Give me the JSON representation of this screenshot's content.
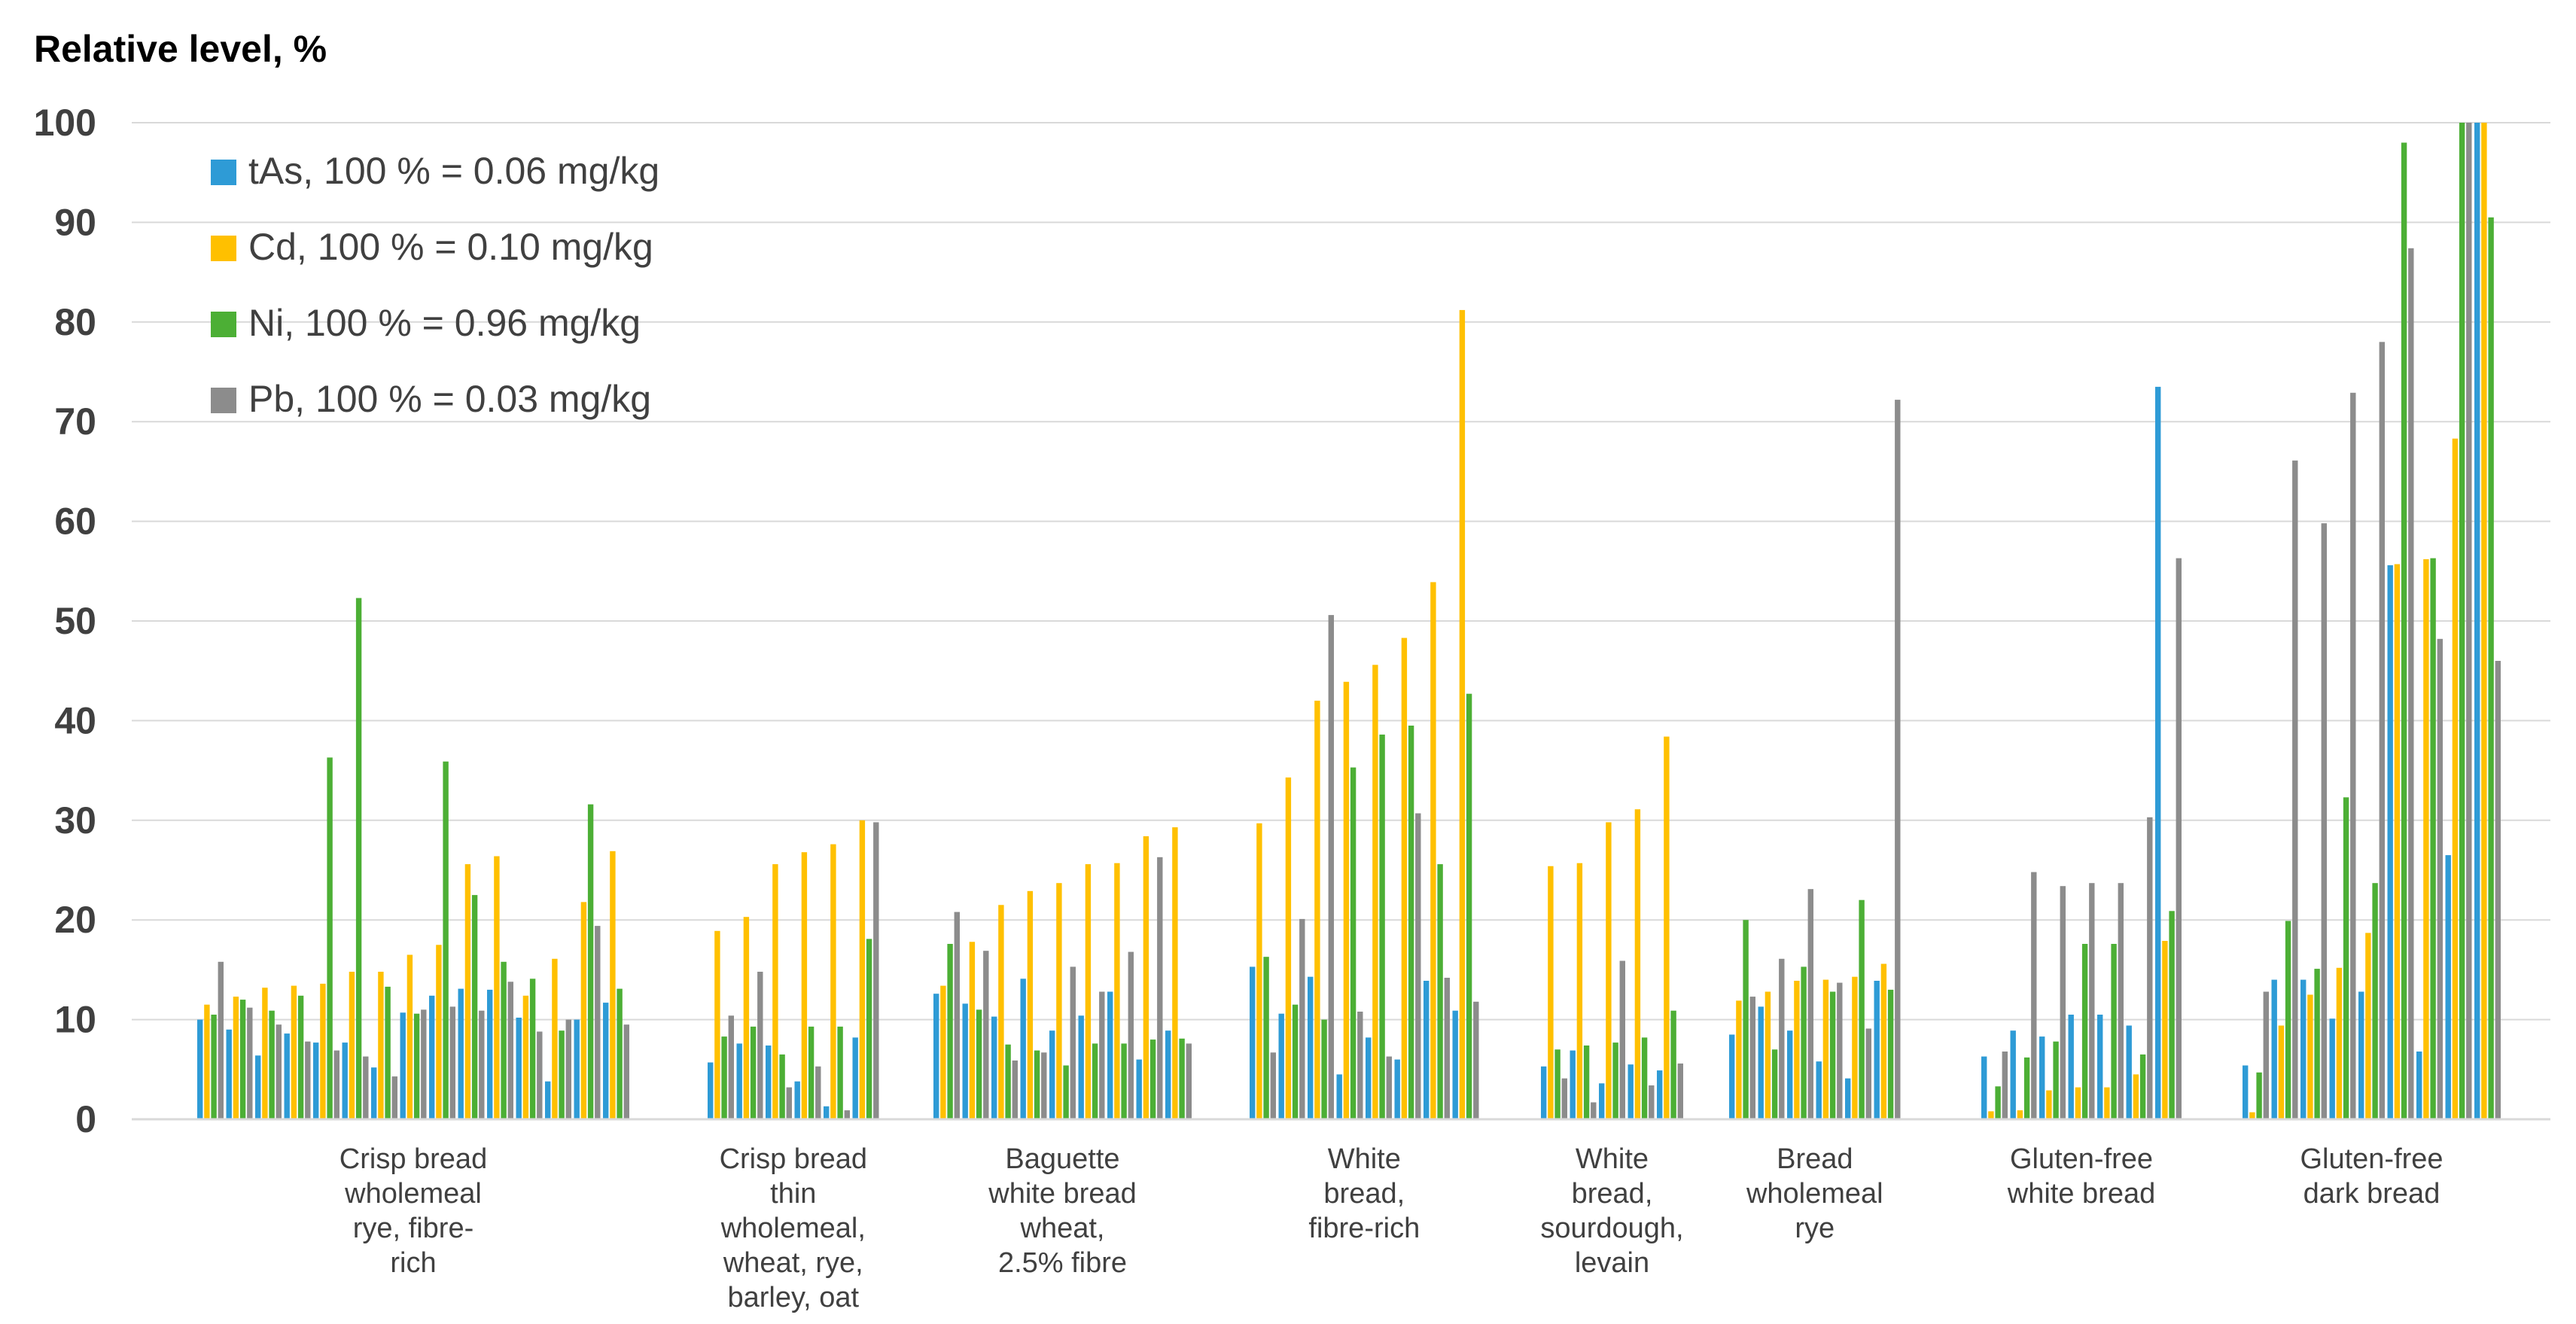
{
  "chart_data": {
    "type": "bar",
    "title": "Relative level, %",
    "xlabel": "",
    "ylabel": "Relative level, %",
    "ylim": [
      0,
      100
    ],
    "yticks": [
      0,
      10,
      20,
      30,
      40,
      50,
      60,
      70,
      80,
      90,
      100
    ],
    "grid": true,
    "legend_position": "top-left",
    "series": [
      {
        "name": "tAs, 100 % = 0.06 mg/kg",
        "color": "#2E9BD6"
      },
      {
        "name": "Cd, 100 % = 0.10 mg/kg",
        "color": "#FFC000"
      },
      {
        "name": "Ni, 100 % = 0.96 mg/kg",
        "color": "#4CAF35"
      },
      {
        "name": "Pb, 100 % = 0.03 mg/kg",
        "color": "#8C8C8C"
      }
    ],
    "groups": [
      {
        "label": [
          "Crisp bread",
          "wholemeal",
          "rye, fibre-",
          "rich"
        ],
        "samples": [
          [
            10.0,
            11.5,
            10.5,
            15.8
          ],
          [
            9.0,
            12.3,
            12.0,
            11.2
          ],
          [
            6.4,
            13.2,
            10.9,
            9.5
          ],
          [
            8.6,
            13.4,
            12.4,
            7.8
          ],
          [
            7.7,
            13.6,
            36.3,
            6.9
          ],
          [
            7.7,
            14.8,
            52.3,
            6.3
          ],
          [
            5.2,
            14.8,
            13.3,
            4.3
          ],
          [
            10.7,
            16.5,
            10.6,
            11.0
          ],
          [
            12.4,
            17.5,
            35.9,
            11.3
          ],
          [
            13.1,
            25.6,
            22.5,
            10.9
          ],
          [
            13.0,
            26.4,
            15.8,
            13.8
          ],
          [
            10.2,
            12.4,
            14.1,
            8.8
          ],
          [
            3.8,
            16.1,
            8.9,
            10.0
          ],
          [
            10.0,
            21.8,
            31.6,
            19.4
          ],
          [
            11.7,
            26.9,
            13.1,
            9.5
          ]
        ]
      },
      {
        "label": [
          "Crisp bread",
          "thin",
          "wholemeal,",
          "wheat, rye,",
          "barley, oat"
        ],
        "samples": [
          [
            5.7,
            18.9,
            8.3,
            10.4
          ],
          [
            7.6,
            20.3,
            9.3,
            14.8
          ],
          [
            7.4,
            25.6,
            6.5,
            3.2
          ],
          [
            3.8,
            26.8,
            9.3,
            5.3
          ],
          [
            1.3,
            27.6,
            9.3,
            0.9
          ],
          [
            8.2,
            30.0,
            18.1,
            29.8
          ]
        ]
      },
      {
        "label": [
          "Baguette",
          "white bread",
          "wheat,",
          "2.5% fibre"
        ],
        "samples": [
          [
            12.6,
            13.4,
            17.6,
            20.8
          ],
          [
            11.6,
            17.8,
            11.0,
            16.9
          ],
          [
            10.3,
            21.5,
            7.5,
            5.9
          ],
          [
            14.1,
            22.9,
            6.9,
            6.7
          ],
          [
            8.9,
            23.7,
            5.4,
            15.3
          ],
          [
            10.4,
            25.6,
            7.6,
            12.8
          ],
          [
            12.8,
            25.7,
            7.6,
            16.8
          ],
          [
            6.0,
            28.4,
            8.0,
            26.3
          ],
          [
            8.9,
            29.3,
            8.1,
            7.6
          ]
        ]
      },
      {
        "label": [
          "White",
          "bread,",
          "fibre-rich"
        ],
        "samples": [
          [
            15.3,
            29.7,
            16.3,
            6.7
          ],
          [
            10.6,
            34.3,
            11.5,
            20.1
          ],
          [
            14.3,
            42.0,
            10.0,
            50.6
          ],
          [
            4.5,
            43.9,
            35.3,
            10.8
          ],
          [
            8.2,
            45.6,
            38.6,
            6.3
          ],
          [
            6.0,
            48.3,
            39.5,
            30.7
          ],
          [
            13.9,
            53.9,
            25.6,
            14.2
          ],
          [
            10.9,
            81.2,
            42.7,
            11.8
          ]
        ]
      },
      {
        "label": [
          "White",
          "bread,",
          "sourdough,",
          "levain"
        ],
        "samples": [
          [
            5.3,
            25.4,
            7.0,
            4.1
          ],
          [
            6.9,
            25.7,
            7.4,
            1.7
          ],
          [
            3.6,
            29.8,
            7.7,
            15.9
          ],
          [
            5.5,
            31.1,
            8.2,
            3.4
          ],
          [
            4.9,
            38.4,
            10.9,
            5.6
          ]
        ]
      },
      {
        "label": [
          "Bread",
          "wholemeal",
          "rye"
        ],
        "samples": [
          [
            8.5,
            11.9,
            20.0,
            12.3
          ],
          [
            11.3,
            12.8,
            7.0,
            16.1
          ],
          [
            8.9,
            13.9,
            15.3,
            23.1
          ],
          [
            5.8,
            14.0,
            12.8,
            13.7
          ],
          [
            4.1,
            14.3,
            22.0,
            9.1
          ],
          [
            13.9,
            15.6,
            13.0,
            72.2
          ]
        ]
      },
      {
        "label": [
          "Gluten-free",
          "white bread"
        ],
        "samples": [
          [
            6.3,
            0.8,
            3.3,
            6.8
          ],
          [
            8.9,
            0.9,
            6.2,
            24.8
          ],
          [
            8.3,
            2.9,
            7.8,
            23.4
          ],
          [
            10.5,
            3.2,
            17.6,
            23.7
          ],
          [
            10.5,
            3.2,
            17.6,
            23.7
          ],
          [
            9.4,
            4.5,
            6.5,
            30.3
          ],
          [
            73.5,
            17.9,
            20.9,
            56.3
          ]
        ]
      },
      {
        "label": [
          "Gluten-free",
          "dark bread"
        ],
        "samples": [
          [
            5.4,
            0.7,
            4.7,
            12.8
          ],
          [
            14.0,
            9.4,
            19.9,
            66.1
          ],
          [
            14.0,
            12.5,
            15.1,
            59.8
          ],
          [
            10.1,
            15.2,
            32.3,
            72.9
          ],
          [
            12.8,
            18.7,
            23.7,
            78.0
          ],
          [
            55.6,
            55.7,
            98.0,
            87.4
          ],
          [
            6.8,
            56.2,
            56.3,
            48.2
          ],
          [
            26.5,
            68.3,
            100.0,
            100.0
          ],
          [
            100.0,
            100.0,
            90.5,
            46.0
          ]
        ]
      }
    ]
  }
}
